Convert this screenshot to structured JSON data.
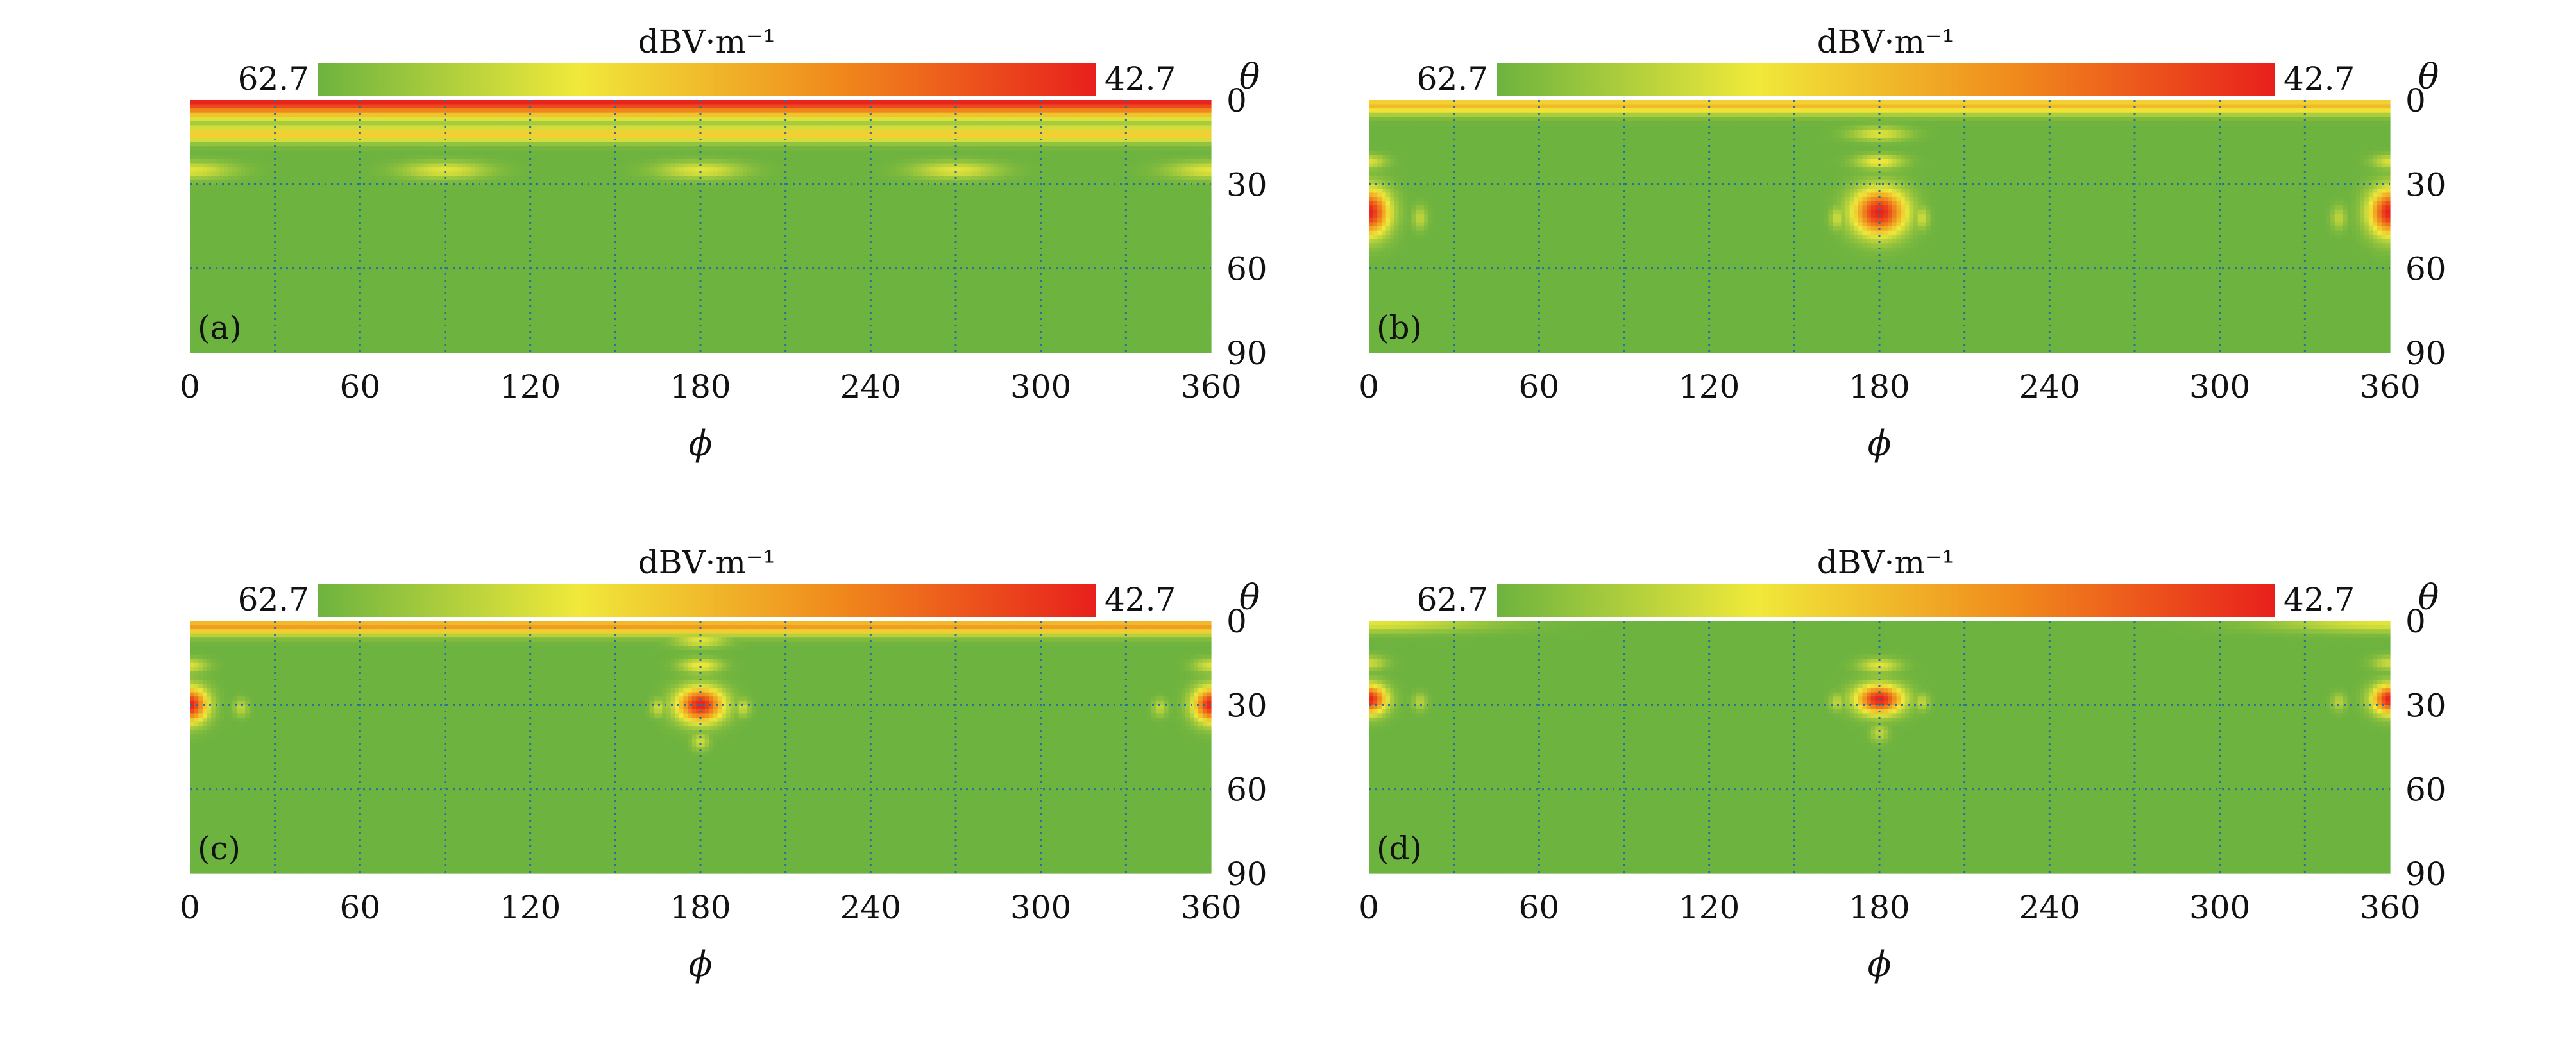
{
  "chart_data": [
    {
      "type": "heatmap",
      "panel_label": "(a)",
      "colorbar": {
        "label": "dBV·m⁻¹",
        "min_label": "62.7",
        "max_label": "42.7",
        "colors": [
          "#6db33f",
          "#f0e93a",
          "#f08a1c",
          "#e8201c"
        ]
      },
      "xlabel": "ϕ",
      "ylabel": "θ",
      "x_ticks": [
        "0",
        "60",
        "120",
        "180",
        "240",
        "300",
        "360"
      ],
      "y_ticks": [
        "0",
        "30",
        "60",
        "90"
      ],
      "xlim": [
        0,
        360
      ],
      "ylim": [
        0,
        90
      ],
      "features": [
        {
          "kind": "band",
          "theta": 0,
          "width": 6,
          "intensity": 1.0
        },
        {
          "kind": "band",
          "theta": 12,
          "width": 3,
          "intensity": 0.45
        },
        {
          "kind": "lobe",
          "phi": 0,
          "theta": 25,
          "rphi": 15,
          "rtheta": 3,
          "intensity": 0.3
        },
        {
          "kind": "lobe",
          "phi": 90,
          "theta": 25,
          "rphi": 15,
          "rtheta": 3,
          "intensity": 0.3
        },
        {
          "kind": "lobe",
          "phi": 180,
          "theta": 25,
          "rphi": 15,
          "rtheta": 3,
          "intensity": 0.3
        },
        {
          "kind": "lobe",
          "phi": 270,
          "theta": 25,
          "rphi": 15,
          "rtheta": 3,
          "intensity": 0.3
        },
        {
          "kind": "lobe",
          "phi": 360,
          "theta": 25,
          "rphi": 15,
          "rtheta": 3,
          "intensity": 0.3
        }
      ]
    },
    {
      "type": "heatmap",
      "panel_label": "(b)",
      "colorbar": {
        "label": "dBV·m⁻¹",
        "min_label": "62.7",
        "max_label": "42.7",
        "colors": [
          "#6db33f",
          "#f0e93a",
          "#f08a1c",
          "#e8201c"
        ]
      },
      "xlabel": "ϕ",
      "ylabel": "θ",
      "x_ticks": [
        "0",
        "60",
        "120",
        "180",
        "240",
        "300",
        "360"
      ],
      "y_ticks": [
        "0",
        "30",
        "60",
        "90"
      ],
      "xlim": [
        0,
        360
      ],
      "ylim": [
        0,
        90
      ],
      "features": [
        {
          "kind": "band",
          "theta": 2,
          "width": 3,
          "intensity": 0.5
        },
        {
          "kind": "lobe",
          "phi": 180,
          "theta": 40,
          "rphi": 9,
          "rtheta": 8,
          "intensity": 1.0
        },
        {
          "kind": "lobe",
          "phi": 180,
          "theta": 22,
          "rphi": 8,
          "rtheta": 2.5,
          "intensity": 0.35
        },
        {
          "kind": "lobe",
          "phi": 180,
          "theta": 12,
          "rphi": 10,
          "rtheta": 2.5,
          "intensity": 0.3
        },
        {
          "kind": "lobe",
          "phi": 165,
          "theta": 42,
          "rphi": 2.5,
          "rtheta": 4,
          "intensity": 0.25
        },
        {
          "kind": "lobe",
          "phi": 195,
          "theta": 42,
          "rphi": 2.5,
          "rtheta": 4,
          "intensity": 0.25
        },
        {
          "kind": "lobe",
          "phi": 0,
          "theta": 40,
          "rphi": 7,
          "rtheta": 8,
          "intensity": 1.0
        },
        {
          "kind": "lobe",
          "phi": 360,
          "theta": 40,
          "rphi": 7,
          "rtheta": 8,
          "intensity": 1.0
        },
        {
          "kind": "lobe",
          "phi": 0,
          "theta": 22,
          "rphi": 6,
          "rtheta": 2.5,
          "intensity": 0.28
        },
        {
          "kind": "lobe",
          "phi": 360,
          "theta": 22,
          "rphi": 6,
          "rtheta": 2.5,
          "intensity": 0.28
        },
        {
          "kind": "lobe",
          "phi": 18,
          "theta": 42,
          "rphi": 2.5,
          "rtheta": 4,
          "intensity": 0.22
        },
        {
          "kind": "lobe",
          "phi": 342,
          "theta": 42,
          "rphi": 2.5,
          "rtheta": 4,
          "intensity": 0.22
        }
      ]
    },
    {
      "type": "heatmap",
      "panel_label": "(c)",
      "colorbar": {
        "label": "dBV·m⁻¹",
        "min_label": "62.7",
        "max_label": "42.7",
        "colors": [
          "#6db33f",
          "#f0e93a",
          "#f08a1c",
          "#e8201c"
        ]
      },
      "xlabel": "ϕ",
      "ylabel": "θ",
      "x_ticks": [
        "0",
        "60",
        "120",
        "180",
        "240",
        "300",
        "360"
      ],
      "y_ticks": [
        "0",
        "30",
        "60",
        "90"
      ],
      "xlim": [
        0,
        360
      ],
      "ylim": [
        0,
        90
      ],
      "features": [
        {
          "kind": "band",
          "theta": 2,
          "width": 3,
          "intensity": 0.6
        },
        {
          "kind": "lobe",
          "phi": 180,
          "theta": 30,
          "rphi": 8,
          "rtheta": 6,
          "intensity": 1.0
        },
        {
          "kind": "lobe",
          "phi": 180,
          "theta": 16,
          "rphi": 7,
          "rtheta": 2.5,
          "intensity": 0.35
        },
        {
          "kind": "lobe",
          "phi": 180,
          "theta": 7,
          "rphi": 9,
          "rtheta": 2.5,
          "intensity": 0.3
        },
        {
          "kind": "lobe",
          "phi": 180,
          "theta": 43,
          "rphi": 3,
          "rtheta": 3,
          "intensity": 0.25
        },
        {
          "kind": "lobe",
          "phi": 165,
          "theta": 31,
          "rphi": 2.5,
          "rtheta": 3,
          "intensity": 0.25
        },
        {
          "kind": "lobe",
          "phi": 195,
          "theta": 31,
          "rphi": 2.5,
          "rtheta": 3,
          "intensity": 0.25
        },
        {
          "kind": "lobe",
          "phi": 0,
          "theta": 30,
          "rphi": 6,
          "rtheta": 6,
          "intensity": 1.0
        },
        {
          "kind": "lobe",
          "phi": 360,
          "theta": 30,
          "rphi": 6,
          "rtheta": 6,
          "intensity": 1.0
        },
        {
          "kind": "lobe",
          "phi": 0,
          "theta": 16,
          "rphi": 6,
          "rtheta": 2.5,
          "intensity": 0.28
        },
        {
          "kind": "lobe",
          "phi": 360,
          "theta": 16,
          "rphi": 6,
          "rtheta": 2.5,
          "intensity": 0.28
        },
        {
          "kind": "lobe",
          "phi": 18,
          "theta": 31,
          "rphi": 2.5,
          "rtheta": 3,
          "intensity": 0.22
        },
        {
          "kind": "lobe",
          "phi": 342,
          "theta": 31,
          "rphi": 2.5,
          "rtheta": 3,
          "intensity": 0.22
        }
      ]
    },
    {
      "type": "heatmap",
      "panel_label": "(d)",
      "colorbar": {
        "label": "dBV·m⁻¹",
        "min_label": "62.7",
        "max_label": "42.7",
        "colors": [
          "#6db33f",
          "#f0e93a",
          "#f08a1c",
          "#e8201c"
        ]
      },
      "xlabel": "ϕ",
      "ylabel": "θ",
      "x_ticks": [
        "0",
        "60",
        "120",
        "180",
        "240",
        "300",
        "360"
      ],
      "y_ticks": [
        "0",
        "30",
        "60",
        "90"
      ],
      "xlim": [
        0,
        360
      ],
      "ylim": [
        0,
        90
      ],
      "features": [
        {
          "kind": "lobe",
          "phi": 0,
          "theta": 1,
          "rphi": 40,
          "rtheta": 3,
          "intensity": 0.3
        },
        {
          "kind": "lobe",
          "phi": 360,
          "theta": 1,
          "rphi": 40,
          "rtheta": 3,
          "intensity": 0.3
        },
        {
          "kind": "lobe",
          "phi": 180,
          "theta": 28,
          "rphi": 8,
          "rtheta": 5,
          "intensity": 1.0
        },
        {
          "kind": "lobe",
          "phi": 180,
          "theta": 16,
          "rphi": 7,
          "rtheta": 2.5,
          "intensity": 0.3
        },
        {
          "kind": "lobe",
          "phi": 180,
          "theta": 40,
          "rphi": 3,
          "rtheta": 3,
          "intensity": 0.22
        },
        {
          "kind": "lobe",
          "phi": 165,
          "theta": 29,
          "rphi": 2.5,
          "rtheta": 3,
          "intensity": 0.22
        },
        {
          "kind": "lobe",
          "phi": 195,
          "theta": 29,
          "rphi": 2.5,
          "rtheta": 3,
          "intensity": 0.22
        },
        {
          "kind": "lobe",
          "phi": 0,
          "theta": 28,
          "rphi": 6,
          "rtheta": 5,
          "intensity": 1.0
        },
        {
          "kind": "lobe",
          "phi": 360,
          "theta": 28,
          "rphi": 6,
          "rtheta": 5,
          "intensity": 1.0
        },
        {
          "kind": "lobe",
          "phi": 0,
          "theta": 15,
          "rphi": 6,
          "rtheta": 2.5,
          "intensity": 0.25
        },
        {
          "kind": "lobe",
          "phi": 360,
          "theta": 15,
          "rphi": 6,
          "rtheta": 2.5,
          "intensity": 0.25
        },
        {
          "kind": "lobe",
          "phi": 18,
          "theta": 29,
          "rphi": 2.5,
          "rtheta": 3,
          "intensity": 0.2
        },
        {
          "kind": "lobe",
          "phi": 342,
          "theta": 29,
          "rphi": 2.5,
          "rtheta": 3,
          "intensity": 0.2
        }
      ]
    }
  ]
}
